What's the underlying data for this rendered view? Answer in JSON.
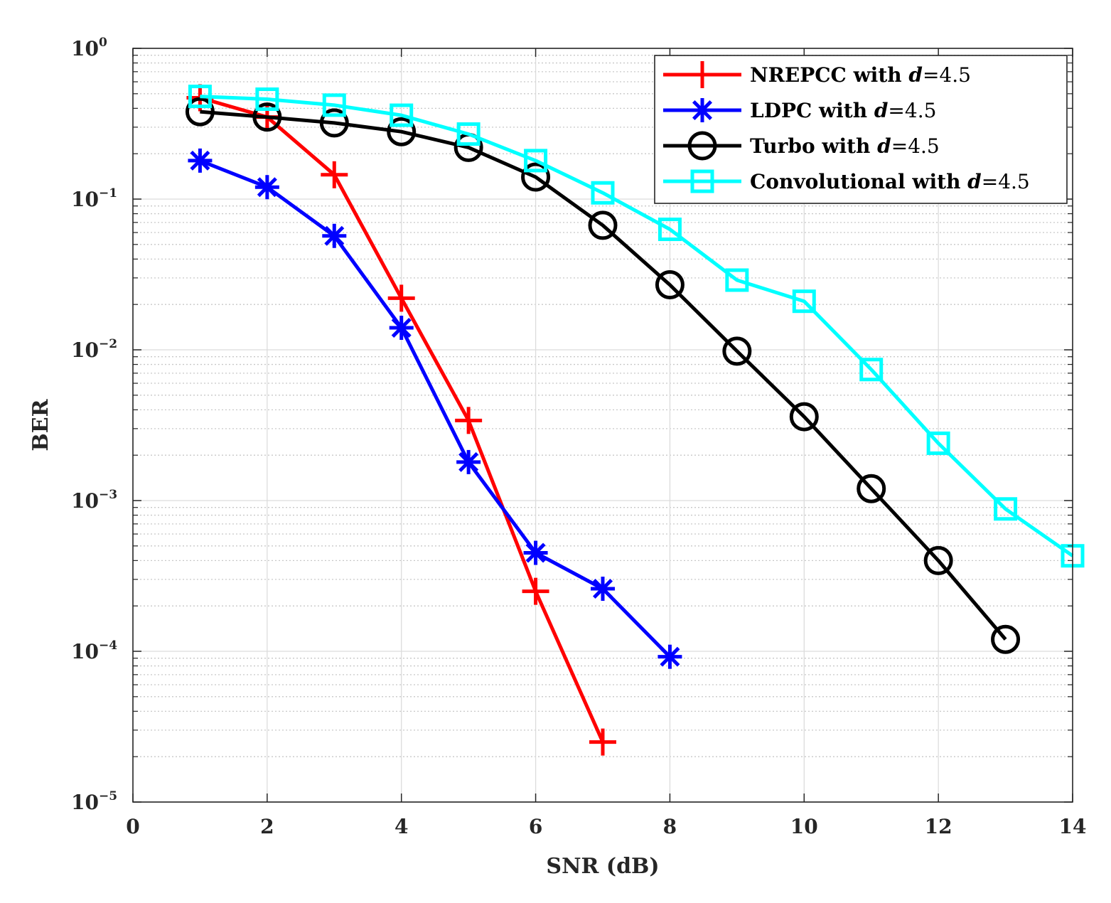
{
  "chart_data": {
    "type": "line",
    "xscale": "linear",
    "yscale": "log",
    "xlabel": "SNR (dB)",
    "ylabel": "BER",
    "xlim": [
      0,
      14
    ],
    "ylim": [
      1e-05,
      1
    ],
    "xticks": [
      0,
      2,
      4,
      6,
      8,
      10,
      12,
      14
    ],
    "xtick_labels": [
      "0",
      "2",
      "4",
      "6",
      "8",
      "10",
      "12",
      "14"
    ],
    "yticks": [
      1e-05,
      0.0001,
      0.001,
      0.01,
      0.1,
      1
    ],
    "ytick_labels": [
      {
        "base": "10",
        "exp": "−5"
      },
      {
        "base": "10",
        "exp": "−4"
      },
      {
        "base": "10",
        "exp": "−3"
      },
      {
        "base": "10",
        "exp": "−2"
      },
      {
        "base": "10",
        "exp": "−1"
      },
      {
        "base": "10",
        "exp": "0"
      }
    ],
    "grid": true,
    "minor_grid": true,
    "legend_position": "top-right",
    "series": [
      {
        "name": "NREPCC",
        "label_prefix": "NREPCC with ",
        "param": "d",
        "param_value": "=4.5",
        "color": "#ff0000",
        "marker": "plus",
        "x": [
          1,
          2,
          3,
          4,
          5,
          6,
          7
        ],
        "y": [
          0.47,
          0.35,
          0.145,
          0.022,
          0.0034,
          0.00025,
          2.5e-05
        ]
      },
      {
        "name": "LDPC",
        "label_prefix": "LDPC with ",
        "param": "d",
        "param_value": "=4.5",
        "color": "#0000ff",
        "marker": "asterisk",
        "x": [
          1,
          2,
          3,
          4,
          5,
          6,
          7,
          8
        ],
        "y": [
          0.18,
          0.12,
          0.057,
          0.014,
          0.0018,
          0.00045,
          0.00026,
          9.2e-05
        ]
      },
      {
        "name": "Turbo",
        "label_prefix": "Turbo with ",
        "param": "d",
        "param_value": "=4.5",
        "color": "#000000",
        "marker": "circle",
        "x": [
          1,
          2,
          3,
          4,
          5,
          6,
          7,
          8,
          9,
          10,
          11,
          12,
          13
        ],
        "y": [
          0.38,
          0.35,
          0.32,
          0.28,
          0.22,
          0.14,
          0.067,
          0.027,
          0.0098,
          0.0036,
          0.0012,
          0.0004,
          0.00012
        ]
      },
      {
        "name": "Convolutional",
        "label_prefix": "Convolutional with ",
        "param": "d",
        "param_value": "=4.5",
        "color": "#00ffff",
        "marker": "square",
        "x": [
          1,
          2,
          3,
          4,
          5,
          6,
          7,
          8,
          9,
          10,
          11,
          12,
          13,
          14
        ],
        "y": [
          0.48,
          0.46,
          0.42,
          0.36,
          0.27,
          0.18,
          0.11,
          0.063,
          0.029,
          0.021,
          0.0074,
          0.0024,
          0.00088,
          0.00043
        ]
      }
    ]
  }
}
